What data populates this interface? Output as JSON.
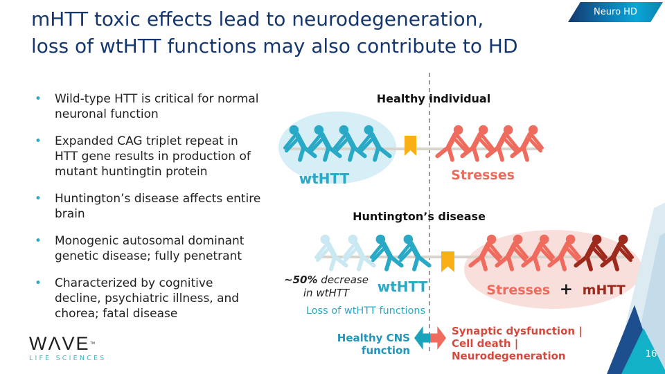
{
  "slide": {
    "title_line1": "mHTT toxic effects lead to neurodegeneration,",
    "title_line2": "loss of wtHTT functions may also contribute to HD",
    "badge": "Neuro HD",
    "page_number": "16"
  },
  "bullets": [
    "Wild-type HTT is critical for normal neuronal function",
    "Expanded CAG triplet repeat in HTT gene results in production of mutant huntingtin protein",
    "Huntington’s disease affects entire brain",
    "Monogenic autosomal dominant genetic disease; fully penetrant",
    "Characterized by cognitive decline, psychiatric illness, and chorea; fatal disease"
  ],
  "diagram": {
    "healthy": {
      "title": "Healthy individual",
      "left_label": "wtHTT",
      "right_label": "Stresses",
      "left_team": [
        "#2aa9c6",
        "#2aa9c6",
        "#2aa9c6",
        "#2aa9c6"
      ],
      "right_team": [
        "#ee6b5d",
        "#ee6b5d",
        "#ee6b5d",
        "#ee6b5d"
      ]
    },
    "hd": {
      "title": "Huntington’s disease",
      "annotation_bold": "~50%",
      "annotation_rest": " decrease",
      "annotation_line2": "in wtHTT",
      "left_label": "wtHTT",
      "right_label_stress": "Stresses",
      "plus": "+",
      "right_label_mhtt": "mHTT",
      "loss_caption": "Loss of wtHTT functions",
      "left_team": [
        "#c9e8f2",
        "#c9e8f2",
        "#2aa9c6",
        "#2aa9c6"
      ],
      "right_team": [
        "#ee6b5d",
        "#ee6b5d",
        "#ee6b5d",
        "#ee6b5d",
        "#9e2a1e",
        "#9e2a1e"
      ]
    },
    "outcome": {
      "left": "Healthy CNS function",
      "right_line1": "Synaptic dysfunction |",
      "right_line2": "Cell death | Neurodegeneration"
    }
  },
  "logo": {
    "wordmark": "WΛVE",
    "tm": "™",
    "tagline": "LIFE SCIENCES"
  },
  "colors": {
    "title_navy": "#16376d",
    "teal": "#2aa9c6",
    "faded_teal": "#c9e8f2",
    "salmon": "#ee6b5d",
    "dark_red": "#9e2a1e",
    "flag_yellow": "#fbaf17",
    "ellipse_blue": "#d6eef6",
    "ellipse_pink": "#f9dfdb",
    "corner_navy": "#1d4f8e",
    "corner_cyan": "#13b1c8"
  }
}
